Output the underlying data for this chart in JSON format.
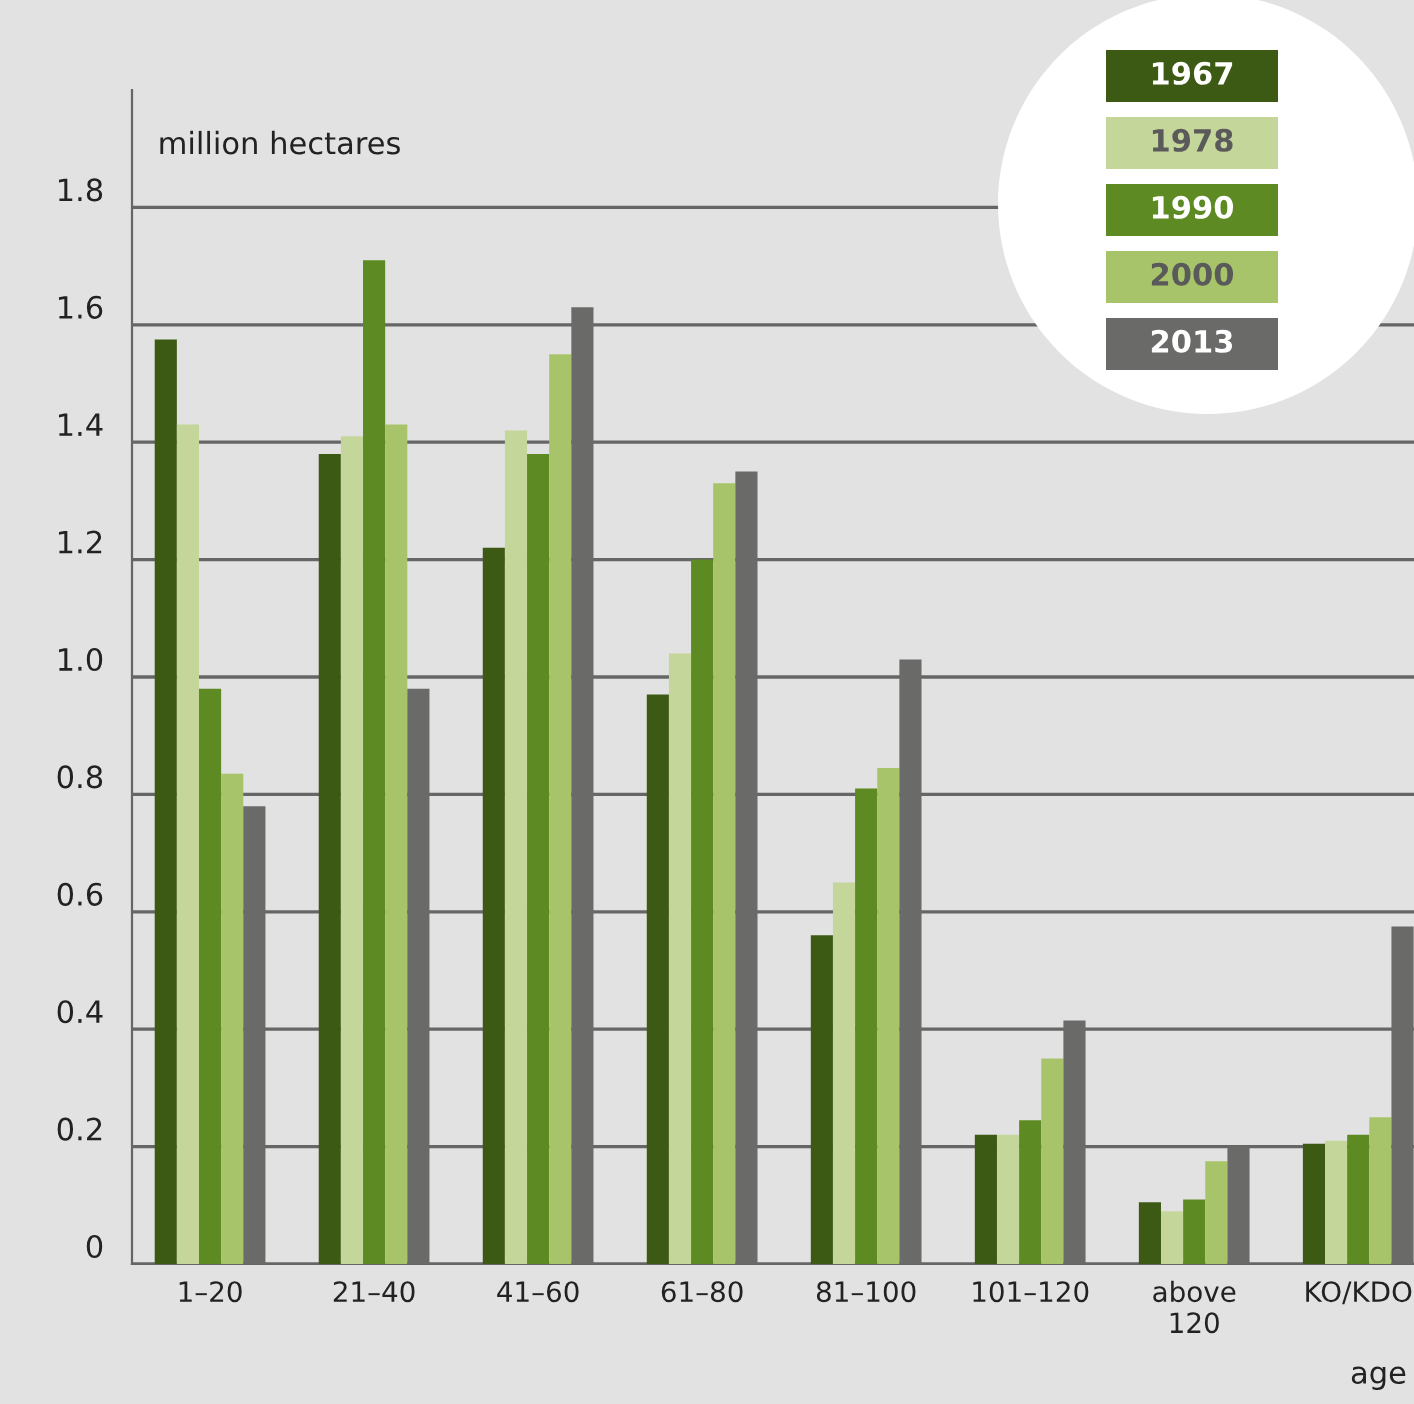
{
  "chart_data": {
    "type": "bar",
    "ylabel": "million hectares",
    "xlabel": "age",
    "categories": [
      "1–20",
      "21–40",
      "41–60",
      "61–80",
      "81–100",
      "101–120",
      "above\n120",
      "KO/KDO"
    ],
    "series": [
      {
        "name": "1967",
        "color": "#3d5a14",
        "values": [
          1.575,
          1.38,
          1.22,
          0.97,
          0.56,
          0.22,
          0.105,
          0.205
        ]
      },
      {
        "name": "1978",
        "color": "#c5d69a",
        "values": [
          1.43,
          1.41,
          1.42,
          1.04,
          0.65,
          0.22,
          0.09,
          0.21
        ]
      },
      {
        "name": "1990",
        "color": "#5e8a23",
        "values": [
          0.98,
          1.71,
          1.38,
          1.2,
          0.81,
          0.245,
          0.11,
          0.22
        ]
      },
      {
        "name": "2000",
        "color": "#a8c46a",
        "values": [
          0.835,
          1.43,
          1.55,
          1.33,
          0.845,
          0.35,
          0.175,
          0.25
        ]
      },
      {
        "name": "2013",
        "color": "#6a6a68",
        "values": [
          0.78,
          0.98,
          1.63,
          1.35,
          1.03,
          0.415,
          0.2,
          0.575
        ]
      }
    ],
    "ylim": [
      0,
      2.0
    ],
    "yticks": [
      0,
      0.2,
      0.4,
      0.6,
      0.8,
      {
        "value": 1,
        "label": "1.0"
      },
      1.2,
      1.4,
      1.6,
      1.8
    ],
    "grid": "y",
    "legend": "top right"
  }
}
